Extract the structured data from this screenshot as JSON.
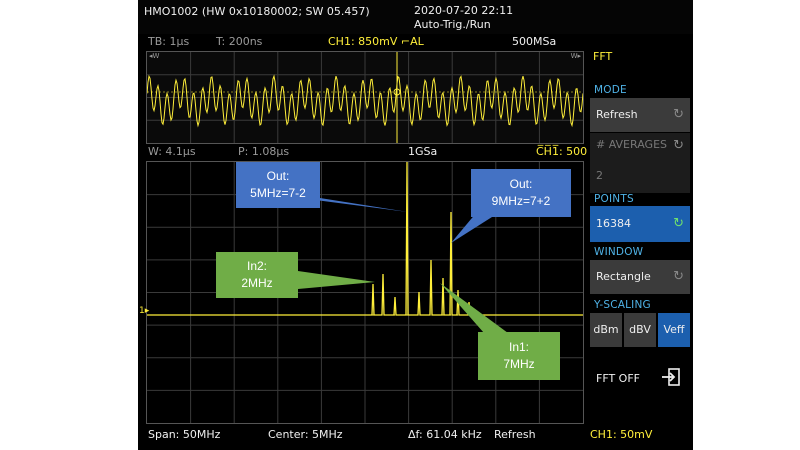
{
  "status": {
    "device": "HMO1002 (HW 0x10180002; SW 05.457)",
    "datetime": "2020-07-20 22:11",
    "mode": "Auto-Trig./Run",
    "fft_label": "FFT"
  },
  "time_info": {
    "timebase": "TB: 1µs",
    "trigger_time": "T: 200ns",
    "channel": "CH1: 850mV ⌐AL",
    "sample_rate": "500MSa",
    "left_marker": "◂W",
    "right_marker": "W▸"
  },
  "fft_info": {
    "window": "W: 4.1µs",
    "position": "P: 1.08µs",
    "sample_rate": "1GSa",
    "channel": "C̅H̅1̅: 500"
  },
  "bottom": {
    "span": "Span: 50MHz",
    "center": "Center: 5MHz",
    "delta_f": "Δf: 61.04 kHz",
    "mode": "Refresh",
    "channel": "CH1: 50mV"
  },
  "menu": {
    "mode_header": "MODE",
    "mode_value": "Refresh",
    "averages_header": "# AVERAGES",
    "averages_value": "2",
    "points_header": "POINTS",
    "points_value": "16384",
    "window_header": "WINDOW",
    "window_value": "Rectangle",
    "yscaling_header": "Y-SCALING",
    "yscaling_options": [
      "dBm",
      "dBV",
      "Veff"
    ],
    "yscaling_selected": "Veff",
    "fft_off": "FFT OFF"
  },
  "callouts": {
    "out1_line1": "Out:",
    "out1_line2": "5MHz=7-2",
    "out2_line1": "Out:",
    "out2_line2": "9MHz=7+2",
    "in2_line1": "In2:",
    "in2_line2": "2MHz",
    "in1_line1": "In1:",
    "in1_line2": "7MHz"
  },
  "colors": {
    "trace": "#ffef3a",
    "menu_header": "#4fb2e6",
    "selected": "#1c5fae",
    "callout_blue": "#4472c4",
    "callout_green": "#70ad47"
  }
}
